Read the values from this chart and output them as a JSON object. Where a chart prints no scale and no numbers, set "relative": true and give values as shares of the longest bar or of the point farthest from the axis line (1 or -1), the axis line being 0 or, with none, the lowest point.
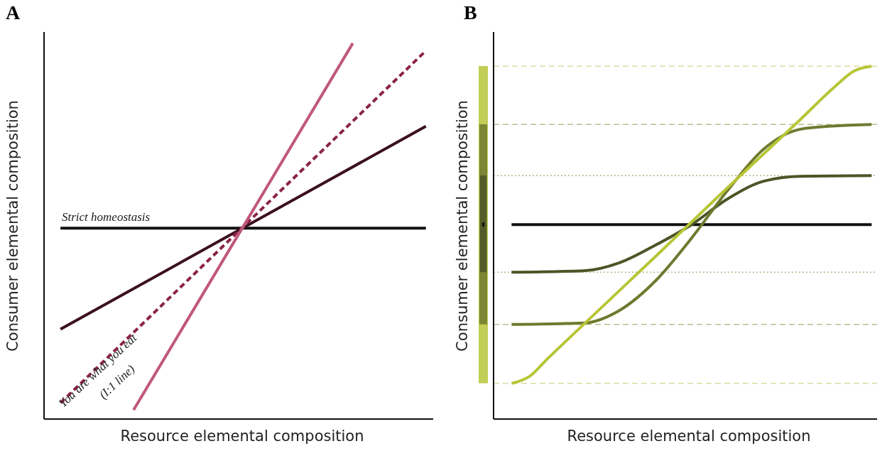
{
  "chart_data": [
    {
      "type": "line",
      "title": "A",
      "xlabel": "Resource elemental composition",
      "ylabel": "Consumer elemental composition",
      "relative": true,
      "categories": [
        null,
        null,
        null,
        null,
        null,
        null,
        null,
        null,
        null,
        null,
        null,
        null,
        null,
        null,
        null,
        null,
        null,
        null,
        null,
        null,
        null
      ],
      "annotations": [
        "Strict homeostasis",
        "You are what you eat",
        "(I:1 line)"
      ],
      "series": [
        {
          "color": "#111111",
          "values": [
            0.508,
            null,
            null,
            null,
            null,
            null,
            null,
            null,
            null,
            null,
            null,
            null,
            null,
            null,
            null,
            null,
            null,
            null,
            null,
            null,
            0.508
          ]
        },
        {
          "color": "#3b1020",
          "values": [
            0.239,
            null,
            null,
            null,
            null,
            null,
            null,
            null,
            null,
            null,
            null,
            null,
            null,
            null,
            null,
            null,
            null,
            null,
            null,
            null,
            0.779
          ]
        },
        {
          "color": "#8a2442",
          "line_style": "dashed",
          "values": [
            0.043,
            null,
            null,
            null,
            null,
            null,
            null,
            null,
            null,
            null,
            null,
            null,
            null,
            null,
            null,
            null,
            null,
            null,
            null,
            null,
            0.98
          ]
        },
        {
          "color": "#c0587e",
          "values": [
            null,
            null,
            null,
            null,
            0.024,
            null,
            null,
            null,
            null,
            null,
            null,
            null,
            null,
            null,
            null,
            null,
            1.0,
            null,
            null,
            null,
            null
          ]
        }
      ]
    },
    {
      "type": "line",
      "title": "B",
      "xlabel": "Resource elemental composition",
      "ylabel": "Consumer elemental composition",
      "relative": true,
      "categories": [
        null,
        null,
        null,
        null,
        null,
        null,
        null,
        null,
        null,
        null,
        null,
        null,
        null,
        null,
        null,
        null,
        null,
        null,
        null,
        null,
        null
      ],
      "series": [
        {
          "color": "#111111",
          "values": [
            0.551,
            null,
            null,
            null,
            null,
            null,
            null,
            null,
            null,
            null,
            null,
            null,
            null,
            null,
            null,
            null,
            null,
            null,
            null,
            null,
            0.551
          ]
        },
        {
          "color": "#4b5526",
          "values": [
            0.416,
            null,
            null,
            null,
            0.42,
            null,
            0.443,
            null,
            0.493,
            null,
            0.551,
            null,
            0.624,
            null,
            0.674,
            null,
            0.688,
            null,
            null,
            null,
            0.69
          ]
        },
        {
          "color": "#6e7a30",
          "values": [
            0.268,
            null,
            null,
            null,
            0.272,
            null,
            0.308,
            null,
            0.392,
            null,
            0.513,
            null,
            0.648,
            null,
            0.765,
            null,
            0.821,
            null,
            0.831,
            null,
            0.835
          ]
        },
        {
          "color": "#b7c537",
          "values": [
            0.101,
            0.121,
            0.171,
            null,
            0.268,
            null,
            null,
            null,
            0.461,
            null,
            null,
            null,
            0.656,
            null,
            null,
            null,
            0.847,
            null,
            0.944,
            0.986,
            1.0
          ]
        }
      ],
      "ref_lines": [
        {
          "axis": "y",
          "value": 1.0,
          "color": "#d8dea4",
          "line_style": "dashed"
        },
        {
          "axis": "y",
          "value": 0.835,
          "color": "#b8bf8c",
          "line_style": "dashed"
        },
        {
          "axis": "y",
          "value": 0.69,
          "color": "#aeb58c",
          "line_style": "dotted"
        },
        {
          "axis": "y",
          "value": 0.416,
          "color": "#aeb58c",
          "line_style": "dotted"
        },
        {
          "axis": "y",
          "value": 0.268,
          "color": "#b8bf8c",
          "line_style": "dashed"
        },
        {
          "axis": "y",
          "value": 0.101,
          "color": "#d8dea4",
          "line_style": "dashed"
        }
      ]
    }
  ]
}
